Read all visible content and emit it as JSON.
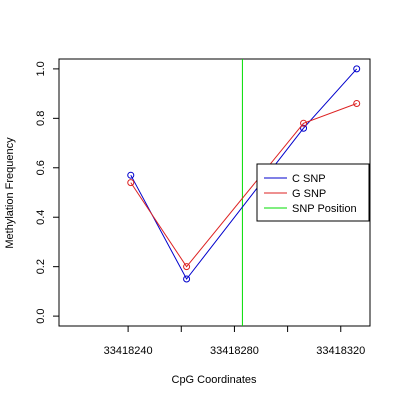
{
  "chart_data": {
    "type": "line",
    "title": "",
    "xlabel": "CpG Coordinates",
    "ylabel": "Methylation Frequency",
    "xlim": [
      33418214,
      33418331
    ],
    "ylim": [
      -0.04,
      1.04
    ],
    "xticks": [
      33418240,
      33418260,
      33418280,
      33418300,
      33418320
    ],
    "xtick_labels": [
      "33418240",
      "",
      "33418280",
      "",
      "33418320"
    ],
    "yticks": [
      0.0,
      0.2,
      0.4,
      0.6,
      0.8,
      1.0
    ],
    "ytick_labels": [
      "0.0",
      "0.2",
      "0.4",
      "0.6",
      "0.8",
      "1.0"
    ],
    "x": [
      33418241,
      33418262,
      33418306,
      33418326
    ],
    "series": [
      {
        "name": "C SNP",
        "color": "#0000cc",
        "values": [
          0.57,
          0.15,
          0.76,
          1.0
        ]
      },
      {
        "name": "G SNP",
        "color": "#dd2222",
        "values": [
          0.54,
          0.2,
          0.78,
          0.86
        ]
      }
    ],
    "snp_position": {
      "name": "SNP Position",
      "color": "#00dd00",
      "x": 33418283
    },
    "grid": false,
    "legend_position": "right"
  }
}
